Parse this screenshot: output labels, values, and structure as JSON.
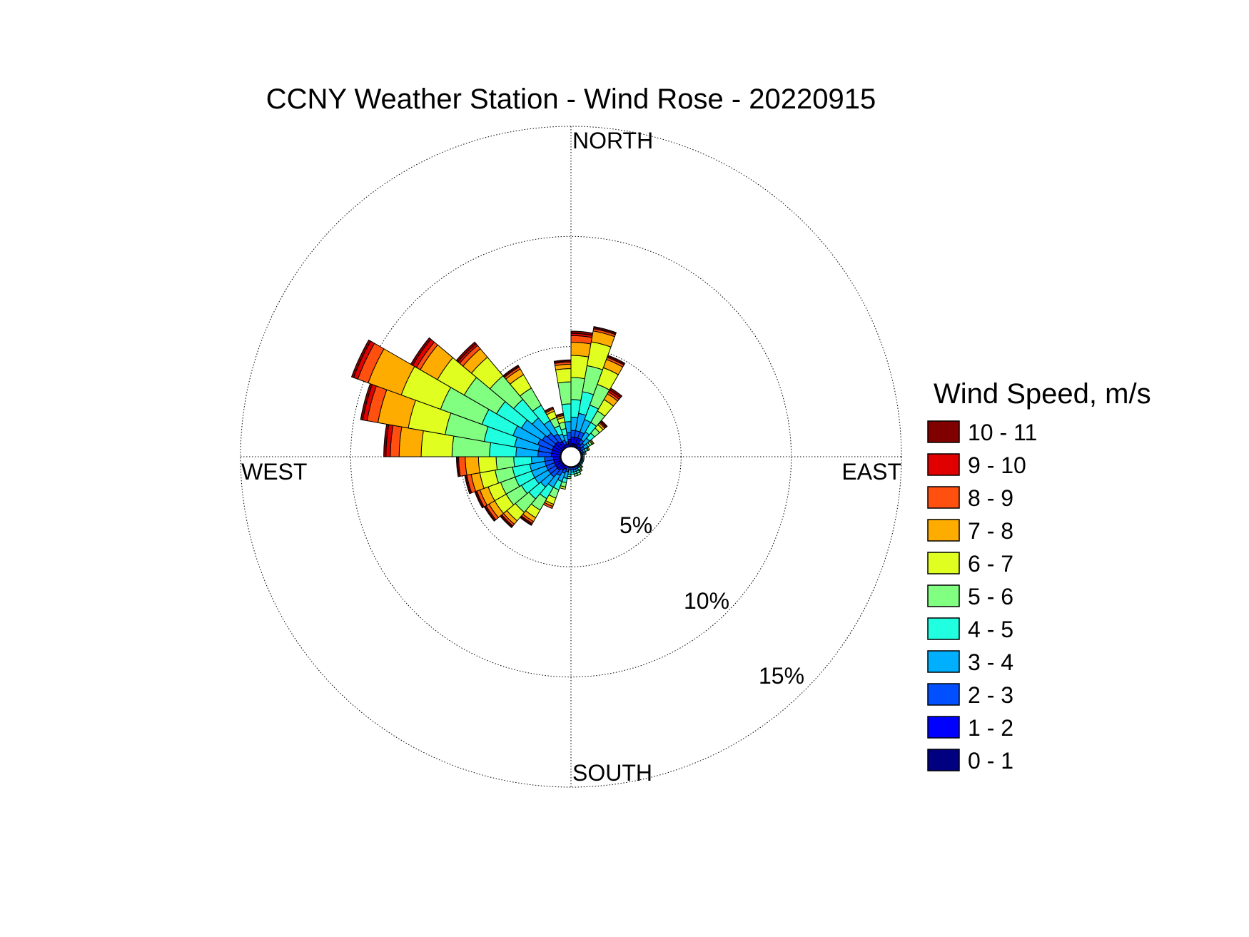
{
  "chart_data": {
    "type": "wind-rose",
    "title": "CCNY Weather Station - Wind Rose - 20220915",
    "directions": {
      "north": "NORTH",
      "east": "EAST",
      "south": "SOUTH",
      "west": "WEST"
    },
    "ring_labels": [
      "5%",
      "10%",
      "15%"
    ],
    "ring_values": [
      5,
      10,
      15
    ],
    "max_percent": 15,
    "legend": {
      "title": "Wind Speed, m/s",
      "bins": [
        {
          "label": "10 - 11",
          "color": "#800000"
        },
        {
          "label": "9 - 10",
          "color": "#e00000"
        },
        {
          "label": "8 - 9",
          "color": "#ff5010"
        },
        {
          "label": "7 - 8",
          "color": "#ffac00"
        },
        {
          "label": "6 - 7",
          "color": "#e0ff20"
        },
        {
          "label": "5 - 6",
          "color": "#80ff80"
        },
        {
          "label": "4 - 5",
          "color": "#20ffe0"
        },
        {
          "label": "3 - 4",
          "color": "#00b0ff"
        },
        {
          "label": "2 - 3",
          "color": "#0050ff"
        },
        {
          "label": "1 - 2",
          "color": "#0000ff"
        },
        {
          "label": "0 - 1",
          "color": "#000080"
        }
      ]
    },
    "bin_order_inner_to_outer": [
      "0 - 1",
      "1 - 2",
      "2 - 3",
      "3 - 4",
      "4 - 5",
      "5 - 6",
      "6 - 7",
      "7 - 8",
      "8 - 9",
      "9 - 10",
      "10 - 11"
    ],
    "sectors": [
      {
        "direction_deg": 5,
        "cum": [
          0.6,
          0.9,
          1.2,
          1.8,
          2.6,
          3.6,
          4.6,
          5.2,
          5.5,
          5.6,
          5.7
        ]
      },
      {
        "direction_deg": 15,
        "cum": [
          0.6,
          0.9,
          1.2,
          2.0,
          3.0,
          4.2,
          5.3,
          5.8,
          5.9,
          5.95,
          6.0
        ]
      },
      {
        "direction_deg": 25,
        "cum": [
          0.6,
          0.9,
          1.2,
          1.8,
          2.5,
          3.5,
          4.3,
          4.7,
          4.8,
          4.85,
          4.9
        ]
      },
      {
        "direction_deg": 35,
        "cum": [
          0.5,
          0.7,
          0.9,
          1.3,
          1.8,
          2.4,
          3.0,
          3.3,
          3.4,
          3.5,
          3.6
        ]
      },
      {
        "direction_deg": 45,
        "cum": [
          0.4,
          0.6,
          0.8,
          1.1,
          1.4,
          1.7,
          1.9,
          2.0,
          2.05,
          2.1,
          2.15
        ]
      },
      {
        "direction_deg": 55,
        "cum": [
          0.4,
          0.55,
          0.7,
          0.9,
          1.0,
          1.1,
          1.15,
          1.2,
          1.2,
          1.2,
          1.2
        ]
      },
      {
        "direction_deg": 65,
        "cum": [
          0.4,
          0.5,
          0.6,
          0.7,
          0.8,
          0.85,
          0.9,
          0.9,
          0.9,
          0.9,
          0.9
        ]
      },
      {
        "direction_deg": 75,
        "cum": [
          0.4,
          0.5,
          0.55,
          0.6,
          0.65,
          0.7,
          0.7,
          0.7,
          0.7,
          0.7,
          0.7
        ]
      },
      {
        "direction_deg": 85,
        "cum": [
          0.4,
          0.45,
          0.5,
          0.55,
          0.6,
          0.6,
          0.6,
          0.6,
          0.6,
          0.6,
          0.6
        ]
      },
      {
        "direction_deg": 95,
        "cum": [
          0.4,
          0.45,
          0.5,
          0.55,
          0.6,
          0.6,
          0.6,
          0.6,
          0.6,
          0.6,
          0.6
        ]
      },
      {
        "direction_deg": 105,
        "cum": [
          0.4,
          0.45,
          0.5,
          0.55,
          0.6,
          0.6,
          0.6,
          0.6,
          0.6,
          0.6,
          0.6
        ]
      },
      {
        "direction_deg": 115,
        "cum": [
          0.4,
          0.45,
          0.5,
          0.55,
          0.6,
          0.6,
          0.6,
          0.6,
          0.6,
          0.6,
          0.6
        ]
      },
      {
        "direction_deg": 125,
        "cum": [
          0.4,
          0.45,
          0.5,
          0.55,
          0.6,
          0.6,
          0.6,
          0.6,
          0.6,
          0.6,
          0.6
        ]
      },
      {
        "direction_deg": 135,
        "cum": [
          0.4,
          0.45,
          0.5,
          0.55,
          0.6,
          0.65,
          0.7,
          0.7,
          0.7,
          0.7,
          0.7
        ]
      },
      {
        "direction_deg": 145,
        "cum": [
          0.4,
          0.5,
          0.55,
          0.6,
          0.7,
          0.75,
          0.8,
          0.8,
          0.8,
          0.8,
          0.8
        ]
      },
      {
        "direction_deg": 155,
        "cum": [
          0.4,
          0.5,
          0.6,
          0.7,
          0.8,
          0.9,
          0.9,
          0.9,
          0.9,
          0.9,
          0.9
        ]
      },
      {
        "direction_deg": 165,
        "cum": [
          0.4,
          0.5,
          0.6,
          0.7,
          0.8,
          0.9,
          0.9,
          0.9,
          0.9,
          0.9,
          0.9
        ]
      },
      {
        "direction_deg": 175,
        "cum": [
          0.4,
          0.5,
          0.6,
          0.7,
          0.8,
          0.8,
          0.8,
          0.8,
          0.8,
          0.8,
          0.8
        ]
      },
      {
        "direction_deg": 185,
        "cum": [
          0.4,
          0.5,
          0.6,
          0.8,
          0.9,
          1.0,
          1.0,
          1.0,
          1.0,
          1.0,
          1.0
        ]
      },
      {
        "direction_deg": 195,
        "cum": [
          0.4,
          0.5,
          0.7,
          1.0,
          1.2,
          1.4,
          1.5,
          1.5,
          1.5,
          1.5,
          1.5
        ]
      },
      {
        "direction_deg": 205,
        "cum": [
          0.4,
          0.6,
          0.8,
          1.2,
          1.6,
          2.0,
          2.3,
          2.4,
          2.5,
          2.5,
          2.5
        ]
      },
      {
        "direction_deg": 215,
        "cum": [
          0.5,
          0.7,
          1.0,
          1.6,
          2.2,
          2.8,
          3.2,
          3.4,
          3.5,
          3.55,
          3.6
        ]
      },
      {
        "direction_deg": 225,
        "cum": [
          0.5,
          0.8,
          1.2,
          1.8,
          2.5,
          3.3,
          3.8,
          4.0,
          4.1,
          4.15,
          4.2
        ]
      },
      {
        "direction_deg": 235,
        "cum": [
          0.5,
          0.8,
          1.2,
          1.9,
          2.6,
          3.4,
          4.0,
          4.3,
          4.45,
          4.5,
          4.55
        ]
      },
      {
        "direction_deg": 245,
        "cum": [
          0.5,
          0.8,
          1.2,
          1.9,
          2.7,
          3.4,
          4.0,
          4.4,
          4.55,
          4.6,
          4.65
        ]
      },
      {
        "direction_deg": 255,
        "cum": [
          0.5,
          0.8,
          1.2,
          1.9,
          2.7,
          3.5,
          4.2,
          4.6,
          4.8,
          4.85,
          4.9
        ]
      },
      {
        "direction_deg": 265,
        "cum": [
          0.5,
          0.8,
          1.2,
          1.8,
          2.6,
          3.4,
          4.2,
          4.8,
          5.1,
          5.15,
          5.2
        ]
      },
      {
        "direction_deg": 275,
        "cum": [
          0.5,
          0.9,
          1.5,
          2.5,
          3.7,
          5.4,
          6.8,
          7.8,
          8.2,
          8.4,
          8.5
        ]
      },
      {
        "direction_deg": 285,
        "cum": [
          0.5,
          0.9,
          1.5,
          2.6,
          4.0,
          5.8,
          7.5,
          8.9,
          9.4,
          9.6,
          9.7
        ]
      },
      {
        "direction_deg": 295,
        "cum": [
          0.5,
          0.9,
          1.6,
          2.8,
          4.3,
          6.3,
          8.2,
          9.8,
          10.3,
          10.5,
          10.6
        ]
      },
      {
        "direction_deg": 305,
        "cum": [
          0.5,
          0.9,
          1.5,
          2.6,
          3.9,
          5.6,
          7.0,
          7.9,
          8.1,
          8.3,
          8.4
        ]
      },
      {
        "direction_deg": 315,
        "cum": [
          0.5,
          0.9,
          1.4,
          2.3,
          3.4,
          4.8,
          5.9,
          6.4,
          6.6,
          6.7,
          6.8
        ]
      },
      {
        "direction_deg": 325,
        "cum": [
          0.5,
          0.8,
          1.2,
          1.9,
          2.7,
          3.6,
          4.3,
          4.6,
          4.7,
          4.75,
          4.8
        ]
      },
      {
        "direction_deg": 335,
        "cum": [
          0.4,
          0.6,
          0.8,
          1.1,
          1.5,
          1.9,
          2.2,
          2.3,
          2.35,
          2.4,
          2.4
        ]
      },
      {
        "direction_deg": 345,
        "cum": [
          0.4,
          0.6,
          0.7,
          1.0,
          1.3,
          1.6,
          1.8,
          1.9,
          1.95,
          2.0,
          2.0
        ]
      },
      {
        "direction_deg": 355,
        "cum": [
          0.5,
          0.8,
          1.1,
          1.6,
          2.4,
          3.4,
          4.0,
          4.2,
          4.3,
          4.35,
          4.4
        ]
      }
    ]
  }
}
